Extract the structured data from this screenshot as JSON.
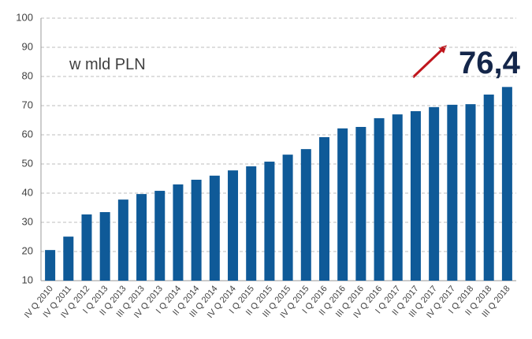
{
  "chart_data": {
    "type": "bar",
    "annotations": [
      "w mld PLN",
      "76,4"
    ],
    "categories": [
      "IV Q 2010",
      "IV Q 2011",
      "IV Q 2012",
      "I Q 2013",
      "II Q 2013",
      "III Q 2013",
      "IV Q 2013",
      "I Q 2014",
      "II Q 2014",
      "III Q 2014",
      "IV Q 2014",
      "I Q 2015",
      "II Q 2015",
      "III Q 2015",
      "IV Q 2015",
      "I Q 2016",
      "II Q 2016",
      "III Q 2016",
      "IV Q 2016",
      "I Q 2017",
      "II Q 2017",
      "III Q 2017",
      "IV Q 2017",
      "I Q 2018",
      "II Q 2018",
      "III Q 2018"
    ],
    "values": [
      20.5,
      25.1,
      32.7,
      33.5,
      37.8,
      39.7,
      40.8,
      43.0,
      44.6,
      46.0,
      47.8,
      49.2,
      50.8,
      53.2,
      55.1,
      59.2,
      62.2,
      62.7,
      65.7,
      67.0,
      68.1,
      69.5,
      70.3,
      70.5,
      73.8,
      76.4
    ],
    "color": "#0f5a98",
    "ylim": [
      10,
      100
    ],
    "yticks": [
      10,
      20,
      30,
      40,
      50,
      60,
      70,
      80,
      90,
      100
    ],
    "grid": true
  }
}
